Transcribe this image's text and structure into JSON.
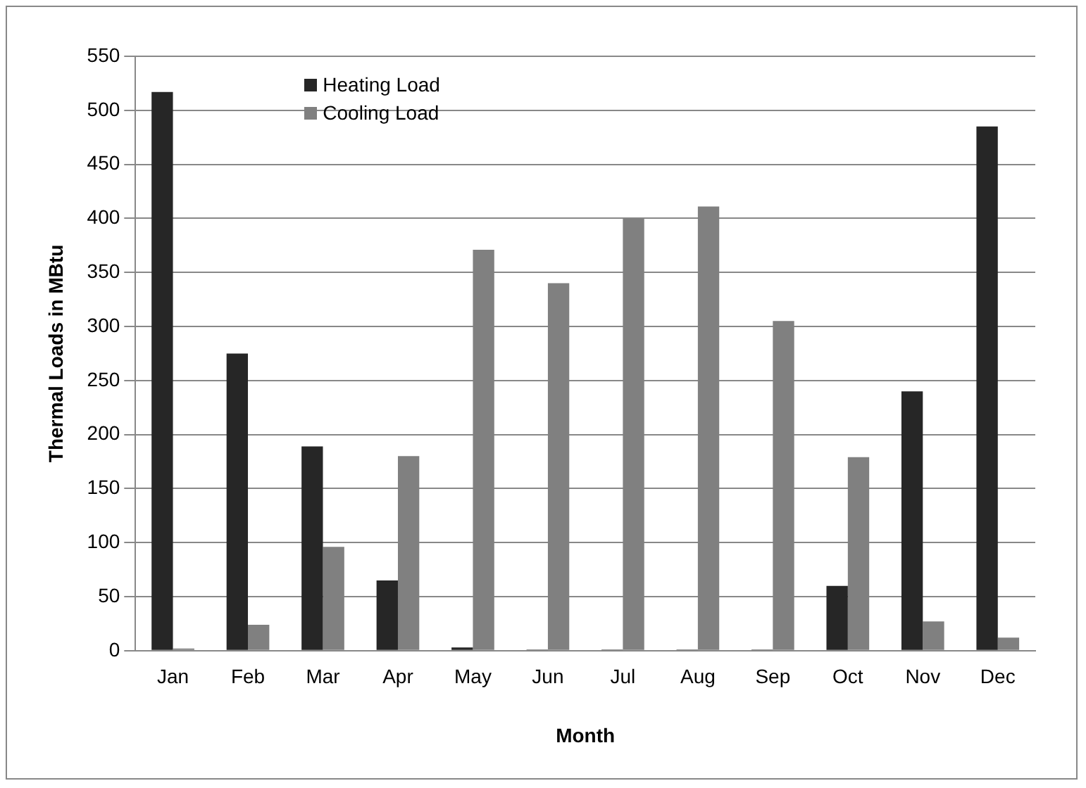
{
  "chart_data": {
    "type": "bar",
    "xlabel": "Month",
    "ylabel": "Thermal Loads in MBtu",
    "categories": [
      "Jan",
      "Feb",
      "Mar",
      "Apr",
      "May",
      "Jun",
      "Jul",
      "Aug",
      "Sep",
      "Oct",
      "Nov",
      "Dec"
    ],
    "series": [
      {
        "name": "Heating Load",
        "color": "#262626",
        "values": [
          517,
          275,
          189,
          65,
          3,
          1,
          1,
          1,
          1,
          60,
          240,
          485
        ]
      },
      {
        "name": "Cooling Load",
        "color": "#808080",
        "values": [
          2,
          24,
          96,
          180,
          371,
          340,
          400,
          411,
          305,
          179,
          27,
          12
        ]
      }
    ],
    "ylim": [
      0,
      550
    ],
    "yticks": [
      0,
      50,
      100,
      150,
      200,
      250,
      300,
      350,
      400,
      450,
      500,
      550
    ],
    "grid": "y",
    "legend": "top left"
  }
}
